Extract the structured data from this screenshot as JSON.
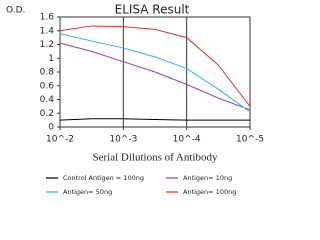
{
  "chart_data": {
    "type": "line",
    "title": "ELISA Result",
    "y_label": "O.D.",
    "x_label": "Serial Dilutions  of Antibody",
    "x": [
      0.01,
      0.003162,
      0.001,
      0.0003162,
      0.0001,
      3.162e-05,
      1e-05
    ],
    "xscale": "log",
    "xlim": [
      0.01,
      1e-05
    ],
    "xticks": [
      {
        "value": 0.01,
        "label": "10^-2"
      },
      {
        "value": 0.001,
        "label": "10^-3"
      },
      {
        "value": 0.0001,
        "label": "10^-4"
      },
      {
        "value": 1e-05,
        "label": "10^-5"
      }
    ],
    "ylim": [
      0,
      1.6
    ],
    "yticks": [
      0,
      0.2,
      0.4,
      0.6,
      0.8,
      1,
      1.2,
      1.4,
      1.6
    ],
    "grid": "x",
    "series": [
      {
        "name": "Control Antigen = 100ng",
        "color": "#000000",
        "values": [
          0.1,
          0.12,
          0.12,
          0.11,
          0.1,
          0.1,
          0.1
        ]
      },
      {
        "name": "Antigen= 10ng",
        "color": "#9b3fa3",
        "values": [
          1.22,
          1.1,
          0.95,
          0.8,
          0.62,
          0.42,
          0.25
        ]
      },
      {
        "name": "Antigen= 50ng",
        "color": "#2db7e6",
        "values": [
          1.36,
          1.25,
          1.15,
          1.02,
          0.85,
          0.55,
          0.22
        ]
      },
      {
        "name": "Antigen= 100ng",
        "color": "#d9342b",
        "values": [
          1.4,
          1.47,
          1.46,
          1.42,
          1.3,
          0.9,
          0.3
        ]
      }
    ]
  }
}
